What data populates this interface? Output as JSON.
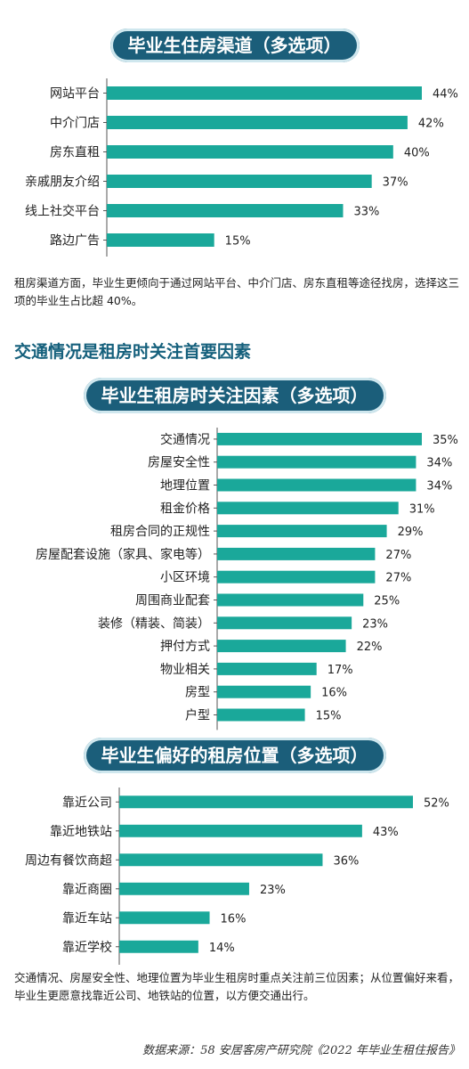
{
  "chart_data": [
    {
      "type": "bar",
      "title": "毕业生住房渠道（多选项）",
      "categories": [
        "网站平台",
        "中介门店",
        "房东直租",
        "亲戚朋友介绍",
        "线上社交平台",
        "路边广告"
      ],
      "values": [
        44,
        42,
        40,
        37,
        33,
        15
      ],
      "value_labels": [
        "44%",
        "42%",
        "40%",
        "37%",
        "33%",
        "15%"
      ],
      "xlim": [
        0,
        44
      ],
      "bar_color": "#1aa89a"
    },
    {
      "type": "bar",
      "title": "毕业生租房时关注因素（多选项）",
      "categories": [
        "交通情况",
        "房屋安全性",
        "地理位置",
        "租金价格",
        "租房合同的正规性",
        "房屋配套设施（家具、家电等）",
        "小区环境",
        "周围商业配套",
        "装修（精装、简装）",
        "押付方式",
        "物业相关",
        "房型",
        "户型"
      ],
      "values": [
        35,
        34,
        34,
        31,
        29,
        27,
        27,
        25,
        23,
        22,
        17,
        16,
        15
      ],
      "value_labels": [
        "35%",
        "34%",
        "34%",
        "31%",
        "29%",
        "27%",
        "27%",
        "25%",
        "23%",
        "22%",
        "17%",
        "16%",
        "15%"
      ],
      "xlim": [
        0,
        35
      ],
      "bar_color": "#1aa89a"
    },
    {
      "type": "bar",
      "title": "毕业生偏好的租房位置（多选项）",
      "categories": [
        "靠近公司",
        "靠近地铁站",
        "周边有餐饮商超",
        "靠近商圈",
        "靠近车站",
        "靠近学校"
      ],
      "values": [
        52,
        43,
        36,
        23,
        16,
        14
      ],
      "value_labels": [
        "52%",
        "43%",
        "36%",
        "23%",
        "16%",
        "14%"
      ],
      "xlim": [
        0,
        52
      ],
      "bar_color": "#1aa89a"
    }
  ],
  "text": {
    "title1": "毕业生住房渠道（多选项）",
    "note1": "租房渠道方面，毕业生更倾向于通过网站平台、中介门店、房东直租等途径找房，选择这三项的毕业生占比超 40%。",
    "heading": "交通情况是租房时关注首要因素",
    "title2": "毕业生租房时关注因素（多选项）",
    "title3": "毕业生偏好的租房位置（多选项）",
    "note2": "交通情况、房屋安全性、地理位置为毕业生租房时重点关注前三位因素；从位置偏好来看，毕业生更愿意找靠近公司、地铁站的位置，以方便交通出行。",
    "source": "数据来源：58 安居客房产研究院《2022 年毕业生租住报告》"
  }
}
